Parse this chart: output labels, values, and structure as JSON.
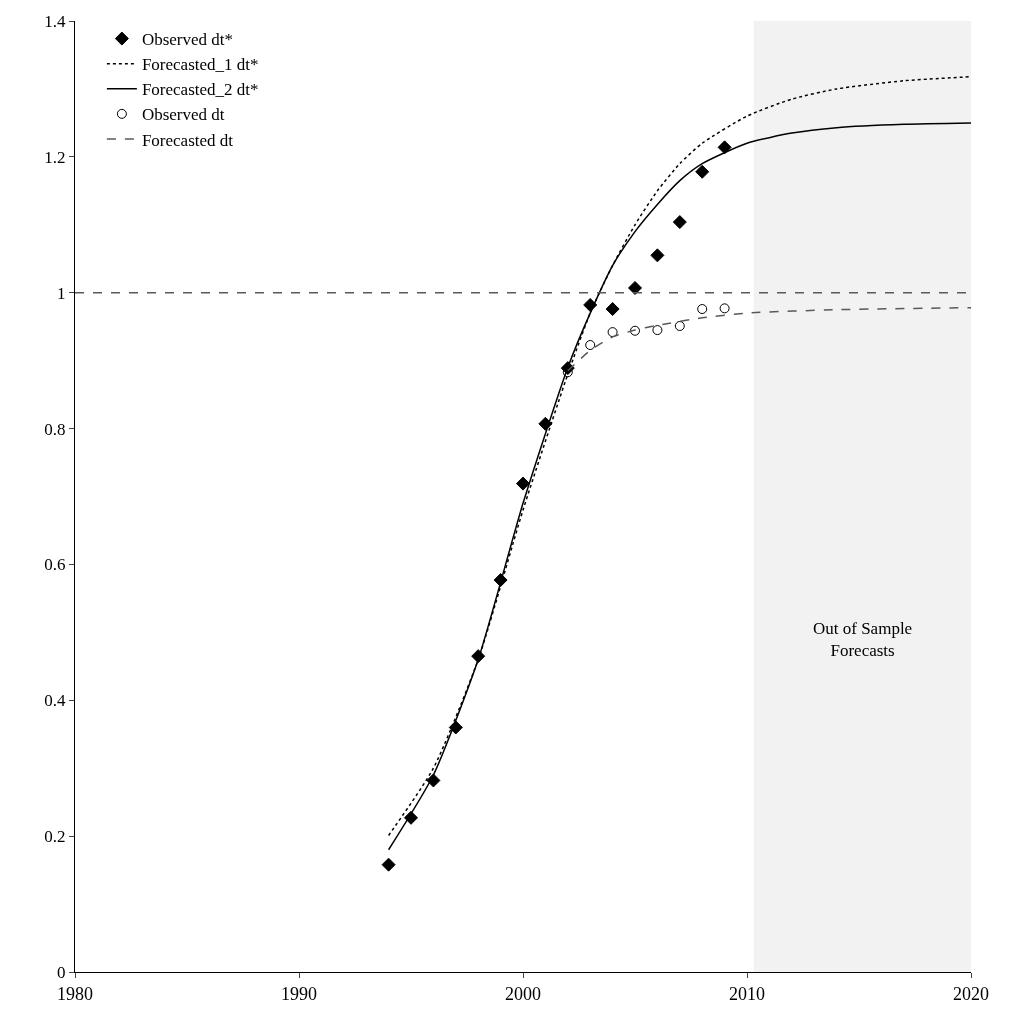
{
  "chart_data": {
    "type": "line",
    "series": [
      {
        "name": "Observed dt*",
        "type": "scatter",
        "marker": "diamond",
        "color": "#000000",
        "x": [
          1994,
          1995,
          1996,
          1997,
          1998,
          1999,
          2000,
          2001,
          2002,
          2003,
          2004,
          2005,
          2006,
          2007,
          2008,
          2009
        ],
        "values": [
          0.158,
          0.227,
          0.282,
          0.36,
          0.465,
          0.577,
          0.719,
          0.807,
          0.889,
          0.982,
          0.976,
          1.007,
          1.055,
          1.104,
          1.178,
          1.214
        ]
      },
      {
        "name": "Forecasted_1 dt*",
        "line_style": "dotted",
        "color": "#000000",
        "x": [
          1994,
          1996,
          1998,
          2000,
          2002,
          2003,
          2004,
          2005,
          2006,
          2007,
          2008,
          2010,
          2012,
          2014,
          2017,
          2020
        ],
        "values": [
          0.201,
          0.3,
          0.46,
          0.68,
          0.88,
          0.97,
          1.04,
          1.1,
          1.15,
          1.19,
          1.22,
          1.26,
          1.285,
          1.3,
          1.312,
          1.318
        ]
      },
      {
        "name": "Forecasted_2 dt*",
        "line_style": "solid",
        "color": "#000000",
        "x": [
          1994,
          1996,
          1998,
          2000,
          2002,
          2003,
          2004,
          2005,
          2006,
          2007,
          2008,
          2010,
          2012,
          2014,
          2017,
          2020
        ],
        "values": [
          0.18,
          0.29,
          0.46,
          0.69,
          0.89,
          0.97,
          1.04,
          1.09,
          1.13,
          1.165,
          1.19,
          1.22,
          1.235,
          1.243,
          1.248,
          1.25
        ]
      },
      {
        "name": "Observed dt",
        "type": "scatter",
        "marker": "circle-open",
        "color": "#000000",
        "x": [
          2002,
          2003,
          2004,
          2005,
          2006,
          2007,
          2008,
          2009
        ],
        "values": [
          0.883,
          0.923,
          0.942,
          0.944,
          0.945,
          0.951,
          0.976,
          0.977
        ]
      },
      {
        "name": "Forecasted dt",
        "line_style": "dashed",
        "color": "#595959",
        "x": [
          2002,
          2003,
          2004,
          2005,
          2006,
          2008,
          2010,
          2014,
          2020
        ],
        "values": [
          0.885,
          0.915,
          0.935,
          0.945,
          0.952,
          0.963,
          0.97,
          0.975,
          0.978
        ]
      }
    ],
    "ref_lines": [
      {
        "axis": "y",
        "value": 1,
        "color": "#595959",
        "line_style": "dashed"
      }
    ],
    "bands": [
      {
        "axis": "x",
        "from": 2010.3,
        "to": 2020,
        "label": "Out of Sample\nForecasts",
        "color": "#f2f2f2"
      }
    ],
    "xlim": [
      1980,
      2020
    ],
    "xticks": [
      1980,
      1990,
      2000,
      2010,
      2020
    ],
    "ylim": [
      0,
      1.4
    ],
    "yticks": [
      0,
      0.2,
      0.4,
      0.6,
      0.8,
      1,
      1.2,
      1.4
    ],
    "grid": false,
    "legend": "top left"
  }
}
